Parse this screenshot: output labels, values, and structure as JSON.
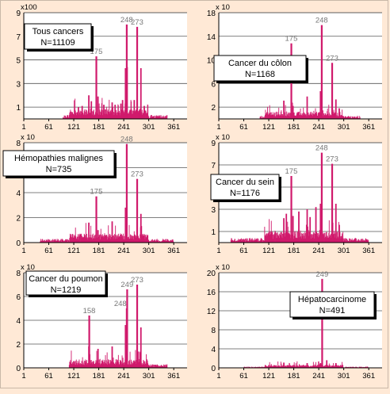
{
  "colors": {
    "bar": "#d01a6c",
    "grid": "#555555",
    "axis": "#000000",
    "peak_label": "#777777",
    "background": "#ffe9d6"
  },
  "chart_data": [
    {
      "type": "bar",
      "title": "Tous cancers",
      "subtitle": "N=11109",
      "multiplier": "x100",
      "ylim": [
        0,
        9
      ],
      "yticks": [
        1,
        3,
        5,
        7,
        9
      ],
      "xlim": [
        1,
        393
      ],
      "xticks": [
        1,
        61,
        121,
        181,
        241,
        301,
        361
      ],
      "grid": true,
      "values_note_peaks": [
        {
          "x": 175,
          "y": 5.3,
          "label": "175"
        },
        {
          "x": 248,
          "y": 8.0,
          "label": "248"
        },
        {
          "x": 273,
          "y": 7.8,
          "label": "273"
        }
      ],
      "minor_peaks": [
        {
          "x": 132,
          "y": 1.0
        },
        {
          "x": 141,
          "y": 1.1
        },
        {
          "x": 157,
          "y": 2.0
        },
        {
          "x": 163,
          "y": 1.5
        },
        {
          "x": 179,
          "y": 1.9
        },
        {
          "x": 193,
          "y": 1.2
        },
        {
          "x": 213,
          "y": 1.4
        },
        {
          "x": 220,
          "y": 1.2
        },
        {
          "x": 234,
          "y": 1.3
        },
        {
          "x": 238,
          "y": 1.6
        },
        {
          "x": 245,
          "y": 4.3
        },
        {
          "x": 249,
          "y": 4.4
        },
        {
          "x": 266,
          "y": 1.6
        },
        {
          "x": 282,
          "y": 4.3
        },
        {
          "x": 290,
          "y": 1.1
        }
      ],
      "background_level": 0.45,
      "active_range": [
        95,
        345
      ]
    },
    {
      "type": "bar",
      "title": "Cancer du côlon",
      "subtitle": "N=1168",
      "multiplier": "x 10",
      "ylim": [
        0,
        18
      ],
      "yticks": [
        2,
        6,
        10,
        14,
        18
      ],
      "xlim": [
        1,
        393
      ],
      "xticks": [
        1,
        61,
        121,
        181,
        241,
        301,
        361
      ],
      "grid": true,
      "values_note_peaks": [
        {
          "x": 175,
          "y": 12.8,
          "label": "175"
        },
        {
          "x": 248,
          "y": 15.9,
          "label": "248"
        },
        {
          "x": 273,
          "y": 9.5,
          "label": "273"
        }
      ],
      "minor_peaks": [
        {
          "x": 157,
          "y": 3.1
        },
        {
          "x": 179,
          "y": 2.2
        },
        {
          "x": 213,
          "y": 3.8
        },
        {
          "x": 245,
          "y": 4.7
        },
        {
          "x": 282,
          "y": 3.3
        },
        {
          "x": 290,
          "y": 1.8
        }
      ],
      "background_level": 0.7,
      "active_range": [
        100,
        340
      ]
    },
    {
      "type": "bar",
      "title": "Hémopathies malignes",
      "subtitle": "N=735",
      "multiplier": "x 10",
      "ylim": [
        0,
        8
      ],
      "yticks": [
        0,
        2,
        4,
        6,
        8
      ],
      "xlim": [
        1,
        393
      ],
      "xticks": [
        1,
        61,
        121,
        181,
        241,
        301,
        361
      ],
      "grid": true,
      "values_note_peaks": [
        {
          "x": 175,
          "y": 3.7,
          "label": "175"
        },
        {
          "x": 248,
          "y": 7.9,
          "label": "248"
        },
        {
          "x": 273,
          "y": 5.1,
          "label": "273"
        }
      ],
      "minor_peaks": [
        {
          "x": 157,
          "y": 1.6
        },
        {
          "x": 179,
          "y": 1.0
        },
        {
          "x": 213,
          "y": 1.7
        },
        {
          "x": 245,
          "y": 2.8
        },
        {
          "x": 282,
          "y": 2.3
        }
      ],
      "background_level": 0.4,
      "active_range": [
        40,
        360
      ]
    },
    {
      "type": "bar",
      "title": "Cancer du sein",
      "subtitle": "N=1176",
      "multiplier": "x 10",
      "ylim": [
        0,
        9
      ],
      "yticks": [
        1,
        3,
        5,
        7,
        9
      ],
      "xlim": [
        1,
        393
      ],
      "xticks": [
        1,
        61,
        121,
        181,
        241,
        301,
        361
      ],
      "grid": true,
      "values_note_peaks": [
        {
          "x": 175,
          "y": 6.0,
          "label": "175"
        },
        {
          "x": 248,
          "y": 8.1,
          "label": "248"
        },
        {
          "x": 273,
          "y": 7.1,
          "label": "273"
        }
      ],
      "minor_peaks": [
        {
          "x": 157,
          "y": 2.2
        },
        {
          "x": 163,
          "y": 2.6
        },
        {
          "x": 179,
          "y": 2.4
        },
        {
          "x": 193,
          "y": 2.8
        },
        {
          "x": 213,
          "y": 3.0
        },
        {
          "x": 220,
          "y": 2.3
        },
        {
          "x": 234,
          "y": 3.2
        },
        {
          "x": 245,
          "y": 3.5
        },
        {
          "x": 282,
          "y": 3.5
        },
        {
          "x": 290,
          "y": 1.6
        }
      ],
      "background_level": 0.55,
      "active_range": [
        30,
        360
      ]
    },
    {
      "type": "bar",
      "title": "Cancer du poumon",
      "subtitle": "N=1219",
      "multiplier": "x 10",
      "ylim": [
        0,
        8
      ],
      "yticks": [
        0,
        2,
        4,
        6,
        8
      ],
      "xlim": [
        1,
        393
      ],
      "xticks": [
        1,
        61,
        121,
        181,
        241,
        301,
        361
      ],
      "grid": true,
      "values_note_peaks": [
        {
          "x": 158,
          "y": 4.4,
          "label": "158"
        },
        {
          "x": 248,
          "y": 5.0,
          "label": "248"
        },
        {
          "x": 249,
          "y": 6.6,
          "label": "249"
        },
        {
          "x": 273,
          "y": 7.0,
          "label": "273"
        }
      ],
      "minor_peaks": [
        {
          "x": 157,
          "y": 1.8
        },
        {
          "x": 179,
          "y": 1.6
        },
        {
          "x": 213,
          "y": 1.8
        },
        {
          "x": 245,
          "y": 3.6
        },
        {
          "x": 282,
          "y": 3.4
        }
      ],
      "background_level": 0.4,
      "active_range": [
        110,
        345
      ]
    },
    {
      "type": "bar",
      "title": "Hépatocarcinome",
      "subtitle": "N=491",
      "multiplier": "x 10",
      "ylim": [
        0,
        20
      ],
      "yticks": [
        0,
        4,
        8,
        12,
        16,
        20
      ],
      "xlim": [
        1,
        393
      ],
      "xticks": [
        1,
        61,
        121,
        181,
        241,
        301,
        361
      ],
      "grid": true,
      "values_note_peaks": [
        {
          "x": 249,
          "y": 18.7,
          "label": "249"
        }
      ],
      "minor_peaks": [
        {
          "x": 157,
          "y": 1.1
        },
        {
          "x": 213,
          "y": 1.0
        },
        {
          "x": 245,
          "y": 1.0
        },
        {
          "x": 260,
          "y": 1.6
        },
        {
          "x": 282,
          "y": 1.0
        }
      ],
      "background_level": 0.35,
      "active_range": [
        60,
        360
      ]
    }
  ]
}
